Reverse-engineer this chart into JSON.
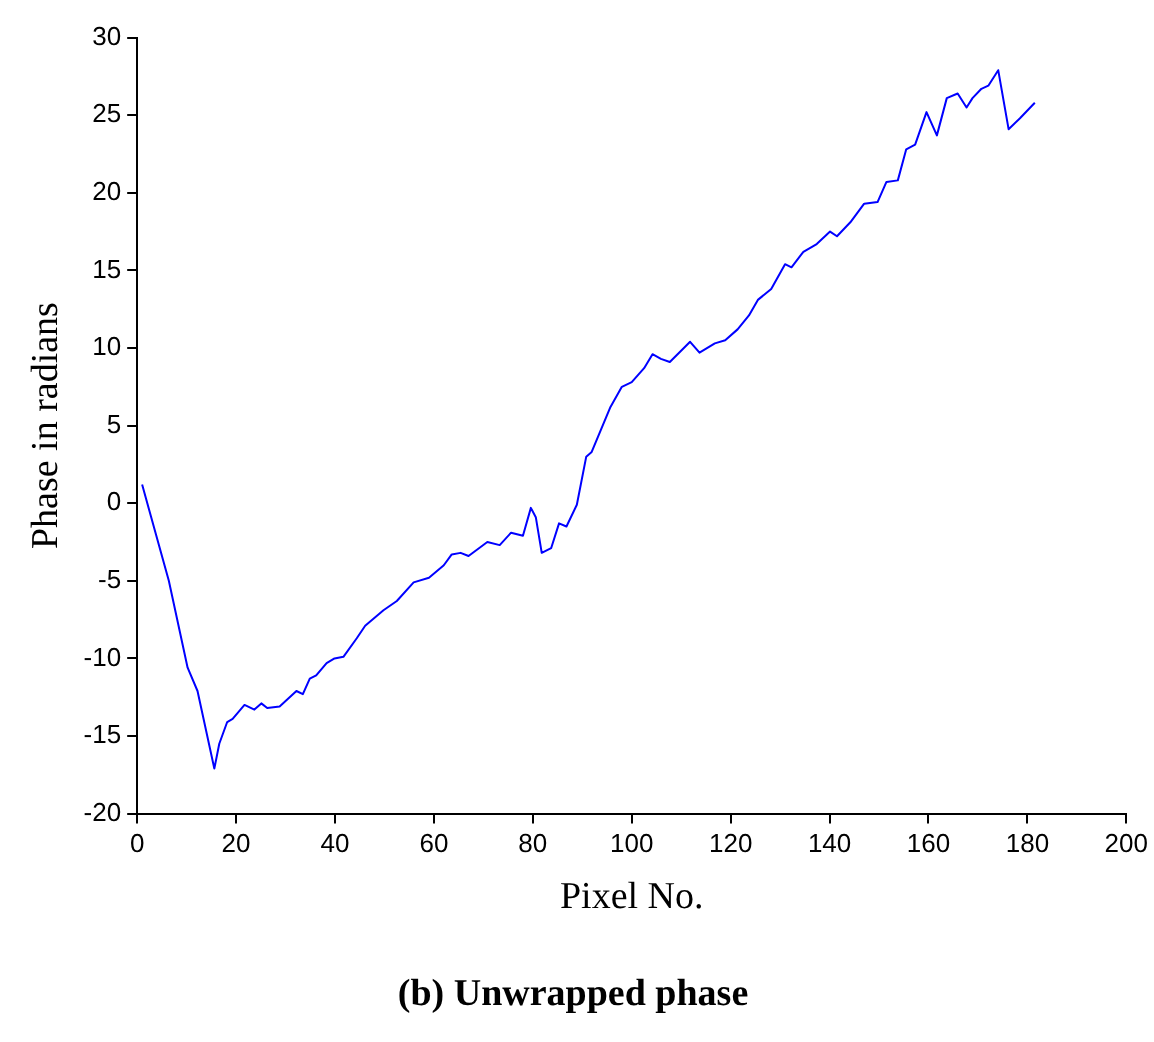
{
  "chart_data": {
    "type": "line",
    "title": "(b) Unwrapped phase",
    "xlabel": "Pixel No.",
    "ylabel": "Phase in radians",
    "xlim": [
      0,
      200
    ],
    "xticks": [
      0,
      20,
      40,
      60,
      80,
      100,
      120,
      140,
      160,
      180,
      200
    ],
    "ylim": [
      -20,
      30
    ],
    "yticks": [
      -20,
      -15,
      -10,
      -5,
      0,
      5,
      10,
      15,
      20,
      25,
      30
    ],
    "grid": false,
    "legend": false,
    "marker": "none",
    "line_style": "solid",
    "series": [
      {
        "color": "#0000ff",
        "x": [
          1,
          6.4,
          10.2,
          12.2,
          15.6,
          16.6,
          18.2,
          19.3,
          21.7,
          23.7,
          25.1,
          26.3,
          28.8,
          30.5,
          32.2,
          33.5,
          34.9,
          36.2,
          38.3,
          39.9,
          41.7,
          44.4,
          46.1,
          49.8,
          52.5,
          55.9,
          59,
          62,
          63.6,
          65.4,
          67,
          70.8,
          73.3,
          75.6,
          78,
          79.6,
          80.6,
          81.8,
          83.7,
          85.3,
          86.8,
          88.9,
          90.8,
          91.9,
          95.7,
          98,
          100,
          102.5,
          104.2,
          105.9,
          107.7,
          111.8,
          113.7,
          116.8,
          118.9,
          121.4,
          123.7,
          125.5,
          128.2,
          131,
          132.3,
          134.7,
          137.4,
          140.1,
          141.5,
          144.2,
          147,
          149.7,
          151.5,
          153.8,
          155.5,
          157.3,
          159.6,
          161.7,
          163.7,
          165.9,
          167.7,
          168.9,
          170.7,
          172.1,
          174.1,
          176.2,
          178.5,
          181.5
        ],
        "values": [
          1.2,
          -5,
          -10.6,
          -12.1,
          -17.1,
          -15.5,
          -14.1,
          -13.9,
          -13,
          -13.3,
          -12.9,
          -13.2,
          -13.1,
          -12.6,
          -12.1,
          -12.3,
          -11.3,
          -11.1,
          -10.3,
          -10,
          -9.9,
          -8.7,
          -7.9,
          -6.9,
          -6.3,
          -5.1,
          -4.8,
          -4,
          -3.3,
          -3.2,
          -3.4,
          -2.5,
          -2.7,
          -1.9,
          -2.1,
          -0.3,
          -0.9,
          -3.2,
          -2.9,
          -1.3,
          -1.5,
          -0.1,
          3,
          3.3,
          6.2,
          7.5,
          7.8,
          8.7,
          9.6,
          9.3,
          9.1,
          10.4,
          9.7,
          10.3,
          10.5,
          11.2,
          12.1,
          13.1,
          13.8,
          15.4,
          15.2,
          16.2,
          16.7,
          17.5,
          17.2,
          18.1,
          19.3,
          19.4,
          20.7,
          20.8,
          22.8,
          23.1,
          25.2,
          23.7,
          26.1,
          26.4,
          25.5,
          26.1,
          26.7,
          26.9,
          27.9,
          24.1,
          24.8,
          25.8
        ]
      }
    ]
  }
}
